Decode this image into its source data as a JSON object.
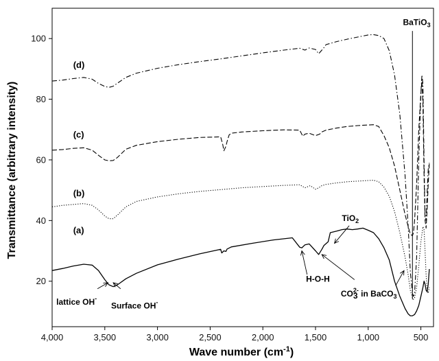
{
  "chart_data": {
    "type": "line",
    "xlabel_main": "Wave number (cm",
    "xlabel_sup": "-1",
    "xlabel_end": ")",
    "ylabel": "Transmittance (arbitrary intensity)",
    "xlim": [
      4000,
      380
    ],
    "x_reversed": true,
    "ylim": [
      5,
      110
    ],
    "x_ticks": [
      4000,
      3500,
      3000,
      2500,
      2000,
      1500,
      1000,
      500
    ],
    "x_tick_labels": [
      "4,000",
      "3,500",
      "3,000",
      "2,500",
      "2,000",
      "1,500",
      "1,000",
      "500"
    ],
    "y_ticks": [
      20,
      40,
      60,
      80,
      100
    ],
    "y_tick_labels": [
      "20",
      "40",
      "60",
      "80",
      "100"
    ],
    "grid": false,
    "series": [
      {
        "name": "(a)",
        "style": "solid",
        "x": [
          4000,
          3900,
          3800,
          3700,
          3620,
          3560,
          3500,
          3460,
          3420,
          3380,
          3300,
          3200,
          3000,
          2800,
          2600,
          2400,
          2390,
          2370,
          2350,
          2340,
          2300,
          2100,
          1900,
          1720,
          1650,
          1630,
          1600,
          1560,
          1500,
          1470,
          1440,
          1420,
          1380,
          1360,
          1300,
          1250,
          1200,
          1150,
          1100,
          1050,
          1000,
          950,
          900,
          850,
          800,
          750,
          700,
          650,
          620,
          600,
          580,
          560,
          540,
          520,
          500,
          480,
          470,
          460,
          450,
          440,
          430,
          420
        ],
        "y": [
          23.5,
          24.2,
          25.0,
          25.6,
          25.3,
          23.5,
          20.5,
          18.8,
          18.2,
          18.8,
          20.8,
          22.6,
          25.4,
          27.3,
          29.0,
          30.5,
          29.3,
          30.0,
          29.8,
          30.6,
          31.3,
          32.5,
          33.6,
          34.3,
          31.2,
          31.0,
          32.0,
          32.3,
          30.0,
          28.8,
          30.5,
          31.8,
          33.0,
          36.0,
          36.5,
          37.0,
          37.2,
          37.0,
          37.2,
          37.5,
          36.8,
          36.0,
          34.0,
          31.0,
          27.0,
          20.0,
          15.0,
          11.0,
          9.2,
          8.6,
          8.6,
          9.0,
          10.2,
          12.0,
          15.0,
          18.0,
          20.0,
          19.0,
          17.0,
          16.5,
          19.0,
          24.0
        ]
      },
      {
        "name": "(b)",
        "style": "dotted",
        "x": [
          4000,
          3900,
          3800,
          3700,
          3620,
          3560,
          3500,
          3460,
          3420,
          3380,
          3300,
          3200,
          3000,
          2800,
          2600,
          2400,
          2200,
          2000,
          1800,
          1650,
          1600,
          1550,
          1500,
          1470,
          1440,
          1400,
          1300,
          1200,
          1100,
          1000,
          950,
          900,
          850,
          800,
          750,
          700,
          650,
          620,
          600,
          580,
          570,
          560,
          540,
          520,
          500,
          480,
          470,
          460,
          450,
          440,
          430,
          420
        ],
        "y": [
          44.5,
          45.0,
          45.3,
          45.6,
          45.0,
          43.5,
          41.5,
          40.6,
          40.6,
          41.8,
          44.5,
          46.3,
          47.8,
          48.8,
          49.6,
          50.2,
          50.8,
          51.2,
          51.6,
          51.8,
          50.8,
          51.5,
          50.3,
          50.8,
          51.5,
          51.9,
          52.4,
          52.8,
          53.0,
          53.2,
          53.3,
          52.8,
          51.0,
          48.0,
          43.0,
          36.0,
          28.0,
          22.0,
          17.0,
          14.5,
          14.0,
          14.5,
          18.0,
          25.0,
          33.0,
          38.0,
          37.0,
          30.0,
          22.0,
          17.0,
          16.0,
          18.0
        ]
      },
      {
        "name": "(c)",
        "style": "dashed",
        "x": [
          4000,
          3900,
          3800,
          3700,
          3620,
          3560,
          3500,
          3460,
          3420,
          3380,
          3300,
          3200,
          3000,
          2800,
          2600,
          2400,
          2380,
          2370,
          2350,
          2340,
          2320,
          2300,
          2200,
          2000,
          1800,
          1650,
          1620,
          1600,
          1560,
          1500,
          1460,
          1440,
          1400,
          1300,
          1200,
          1100,
          1000,
          950,
          900,
          850,
          800,
          750,
          700,
          650,
          620,
          600,
          580,
          570,
          560,
          540,
          520,
          500,
          490,
          480,
          470,
          460,
          450,
          440,
          430,
          420
        ],
        "y": [
          63.2,
          63.4,
          63.8,
          64.0,
          63.2,
          61.5,
          60.0,
          59.7,
          59.8,
          60.8,
          63.5,
          64.8,
          66.0,
          66.8,
          67.4,
          67.6,
          65.0,
          63.0,
          64.5,
          66.0,
          68.2,
          68.8,
          69.2,
          69.6,
          69.9,
          69.8,
          67.8,
          68.5,
          68.8,
          68.0,
          68.5,
          69.2,
          69.8,
          70.5,
          71.0,
          71.3,
          71.5,
          71.6,
          71.0,
          68.0,
          64.0,
          58.0,
          50.0,
          42.0,
          38.0,
          35.5,
          35.0,
          36.0,
          40.0,
          52.0,
          70.0,
          82.0,
          86.0,
          78.0,
          55.0,
          40.0,
          37.5,
          44.0,
          52.0,
          59.0
        ]
      },
      {
        "name": "(d)",
        "style": "dashdot",
        "x": [
          4000,
          3900,
          3800,
          3700,
          3620,
          3560,
          3500,
          3460,
          3420,
          3380,
          3300,
          3200,
          3000,
          2800,
          2600,
          2400,
          2200,
          2000,
          1800,
          1650,
          1600,
          1560,
          1500,
          1470,
          1450,
          1420,
          1400,
          1300,
          1200,
          1100,
          1000,
          950,
          900,
          850,
          800,
          750,
          700,
          650,
          620,
          600,
          580,
          570,
          560,
          540,
          520,
          500,
          490,
          480,
          470,
          460,
          450,
          440,
          430,
          420
        ],
        "y": [
          86.0,
          86.3,
          86.8,
          87.2,
          86.6,
          85.2,
          84.2,
          83.9,
          84.3,
          85.3,
          87.2,
          88.6,
          90.2,
          91.4,
          92.4,
          93.3,
          94.3,
          95.3,
          96.2,
          96.8,
          96.2,
          96.9,
          96.4,
          95.0,
          95.8,
          97.0,
          98.0,
          99.0,
          99.8,
          100.5,
          101.2,
          101.3,
          101.0,
          100.0,
          96.0,
          88.0,
          75.0,
          55.0,
          38.0,
          23.0,
          16.0,
          15.0,
          16.0,
          28.0,
          60.0,
          82.0,
          88.0,
          85.0,
          60.0,
          42.0,
          40.0,
          50.0,
          57.0,
          59.0
        ]
      }
    ],
    "series_labels": [
      {
        "text": "(a)",
        "x": 3800,
        "y": 35.8
      },
      {
        "text": "(b)",
        "x": 3800,
        "y": 48.0
      },
      {
        "text": "(c)",
        "x": 3800,
        "y": 67.3
      },
      {
        "text": "(d)",
        "x": 3800,
        "y": 90.3
      }
    ],
    "annotations": {
      "batio3": {
        "text": "BaTiO",
        "sub": "3",
        "x": 670,
        "y": 104.5,
        "line_x": 580,
        "line_y1": 102.5,
        "line_y2": 14.0
      },
      "tio2": {
        "text": "TiO",
        "sub": "2",
        "x": 1250,
        "y": 39.8
      },
      "hoh": {
        "text": "H-O-H",
        "x": 1590,
        "y": 19.8
      },
      "co3": {
        "text": "CO",
        "sub": "3",
        "sup": "2-",
        "rest": " in BaCO",
        "sub2": "3",
        "x": 1260,
        "y": 15.0
      },
      "lattice": {
        "text": "lattice OH",
        "sup": "-",
        "x": 3960,
        "y": 12.2
      },
      "surface": {
        "text": "Surface OH",
        "sup": "-",
        "x": 3440,
        "y": 11.0
      },
      "arrows": [
        {
          "from": [
            3570,
            17.5
          ],
          "to": [
            3470,
            19.5
          ]
        },
        {
          "from": [
            3350,
            17.5
          ],
          "to": [
            3420,
            19.5
          ]
        },
        {
          "from": [
            1580,
            22.2
          ],
          "to": [
            1630,
            30.0
          ]
        },
        {
          "from": [
            1130,
            20.5
          ],
          "to": [
            1440,
            28.8
          ]
        },
        {
          "from": [
            1180,
            38.3
          ],
          "to": [
            1320,
            32.5
          ]
        },
        {
          "from": [
            740,
            18.5
          ],
          "to": [
            660,
            23.5
          ]
        }
      ]
    }
  }
}
